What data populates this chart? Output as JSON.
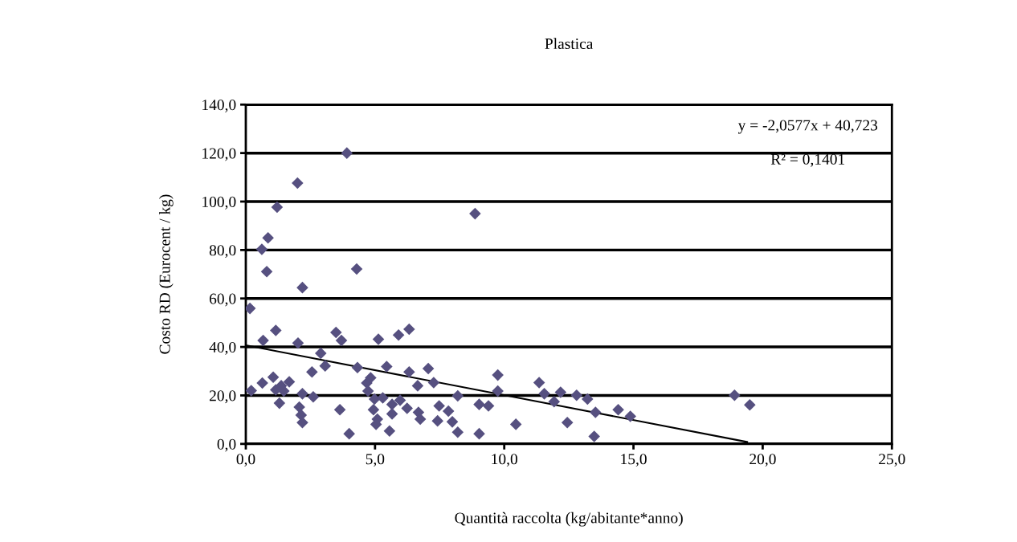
{
  "chart_data": {
    "type": "scatter",
    "title": "Plastica",
    "xlabel": "Quantità raccolta (kg/abitante*anno)",
    "ylabel": "Costo RD (Eurocent / kg)",
    "marker": "diamond",
    "grid": "y",
    "legend": false,
    "xlim": [
      0,
      25
    ],
    "ylim": [
      0,
      140
    ],
    "xticks": [
      {
        "value": 0,
        "label": "0,0"
      },
      {
        "value": 5,
        "label": "5,0"
      },
      {
        "value": 10,
        "label": "10,0"
      },
      {
        "value": 15,
        "label": "15,0"
      },
      {
        "value": 20,
        "label": "20,0"
      },
      {
        "value": 25,
        "label": "25,0"
      }
    ],
    "yticks": [
      {
        "value": 0,
        "label": "0,0"
      },
      {
        "value": 20,
        "label": "20,0"
      },
      {
        "value": 40,
        "label": "40,0"
      },
      {
        "value": 60,
        "label": "60,0"
      },
      {
        "value": 80,
        "label": "80,0"
      },
      {
        "value": 100,
        "label": "100,0"
      },
      {
        "value": 120,
        "label": "120,0"
      },
      {
        "value": 140,
        "label": "140,0"
      }
    ],
    "annotations": [
      "y = -2,0577x + 40,723",
      "R² = 0,1401"
    ],
    "series": [
      {
        "color": "#565080",
        "x": [
          3.91,
          2.0,
          1.21,
          8.87,
          0.86,
          0.62,
          4.29,
          0.81,
          2.19,
          0.16,
          1.16,
          0.67,
          2.02,
          3.49,
          3.7,
          5.13,
          5.91,
          6.32,
          2.9,
          3.07,
          2.56,
          4.32,
          5.45,
          6.32,
          7.06,
          6.65,
          7.27,
          9.75,
          9.75,
          8.2,
          0.21,
          0.64,
          1.06,
          1.37,
          1.68,
          1.16,
          1.47,
          1.3,
          2.19,
          2.61,
          2.07,
          2.14,
          2.19,
          3.64,
          4.0,
          4.68,
          4.83,
          4.73,
          4.98,
          5.3,
          4.94,
          5.09,
          5.04,
          5.66,
          5.66,
          5.56,
          5.97,
          6.24,
          6.68,
          6.75,
          7.48,
          7.84,
          7.42,
          7.99,
          8.2,
          9.03,
          9.39,
          9.03,
          10.45,
          11.35,
          11.55,
          12.18,
          11.93,
          12.44,
          12.8,
          13.48,
          13.22,
          13.53,
          14.41,
          14.88,
          18.91,
          19.5
        ],
        "values": [
          120,
          107.6,
          97.7,
          95,
          85,
          80.3,
          72.2,
          71.1,
          64.5,
          55.9,
          46.8,
          42.7,
          41.6,
          46,
          42.7,
          43.2,
          44.9,
          47.3,
          37.4,
          32.2,
          29.7,
          31.5,
          31.9,
          29.7,
          31.1,
          24,
          25.3,
          28.4,
          21.8,
          19.8,
          22,
          25.1,
          27.5,
          24,
          25.6,
          22.3,
          21.8,
          16.8,
          20.7,
          19.4,
          15.2,
          11.9,
          8.8,
          14.1,
          4.2,
          25.1,
          27.3,
          21.8,
          18.5,
          19,
          14.1,
          10.2,
          8.1,
          16.3,
          12.4,
          5.3,
          18,
          14.7,
          13,
          10.2,
          15.7,
          13.5,
          9.5,
          9.1,
          4.8,
          16.3,
          15.7,
          4.2,
          8.1,
          25.3,
          20.7,
          21.3,
          17.4,
          8.8,
          20.1,
          3.1,
          18.5,
          13,
          14.1,
          11.4,
          20.1,
          16.1
        ]
      },
      {
        "type": "line",
        "marker": "none",
        "color": "#000000",
        "x": [
          0,
          19.4
        ],
        "values": [
          40.7,
          0.8
        ]
      }
    ]
  }
}
